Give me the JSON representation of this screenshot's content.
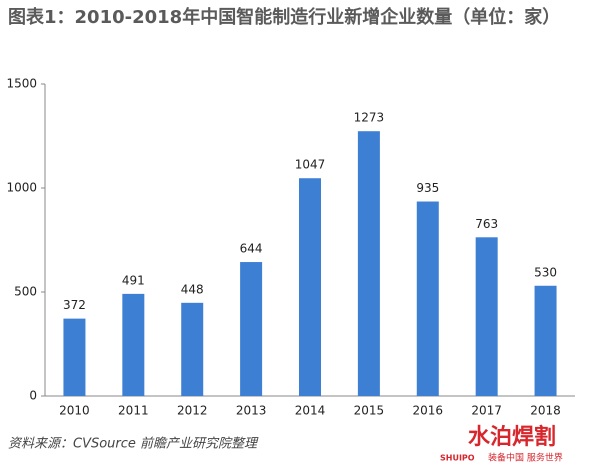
{
  "chart_data": {
    "type": "bar",
    "title": "图表1：2010-2018年中国智能制造行业新增企业数量（单位：家）",
    "categories": [
      "2010",
      "2011",
      "2012",
      "2013",
      "2014",
      "2015",
      "2016",
      "2017",
      "2018"
    ],
    "values": [
      372,
      491,
      448,
      644,
      1047,
      1273,
      935,
      763,
      530
    ],
    "color": "#3d7fd3",
    "ylim": [
      0,
      1500
    ],
    "yticks": [
      0,
      500,
      1000,
      1500
    ],
    "grid": false,
    "source": "资料来源：CVSource 前瞻产业研究院整理"
  },
  "watermark": {
    "brand": "水泊焊割",
    "latin": "SHUIPO",
    "slogan": "装备中国 服务世界"
  }
}
